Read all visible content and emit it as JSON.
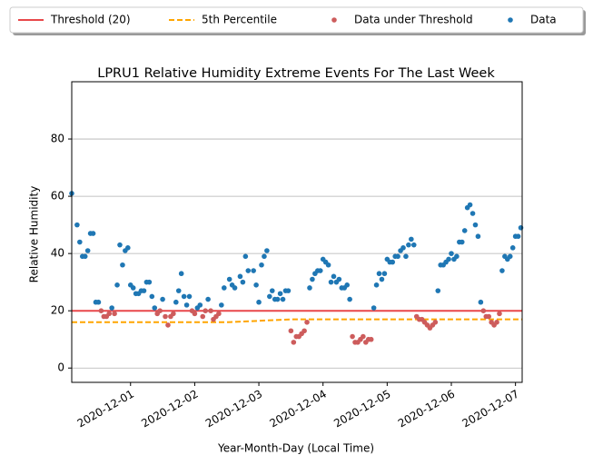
{
  "chart_data": {
    "type": "scatter",
    "title": "LPRU1 Relative Humidity Extreme Events For The Last Week",
    "x_label": "Year-Month-Day (Local Time)",
    "y_label": "Relative Humidity",
    "xlim": [
      "2020-11-30T02:00",
      "2020-12-07T02:30"
    ],
    "ylim": [
      -5,
      100
    ],
    "xticks": [
      "2020-12-01",
      "2020-12-02",
      "2020-12-03",
      "2020-12-04",
      "2020-12-05",
      "2020-12-06",
      "2020-12-07"
    ],
    "yticks": [
      0,
      20,
      40,
      60,
      80
    ],
    "grid": "y",
    "legend": "top",
    "series": [
      {
        "name": "Threshold (20)",
        "style": "line",
        "color": "#e8474a",
        "x": [
          "2020-11-30T02:00",
          "2020-12-07T02:30"
        ],
        "values": [
          20,
          20
        ]
      },
      {
        "name": "5th Percentile",
        "style": "dashed",
        "color": "#ffa500",
        "x": [
          "2020-11-30T02:00",
          "2020-12-02T12:00",
          "2020-12-03T12:00",
          "2020-12-07T02:30"
        ],
        "values": [
          16,
          16,
          17,
          17
        ]
      },
      {
        "name": "Data under Threshold",
        "style": "points",
        "color": "#cd5c5c",
        "x": [
          "2020-11-30T13:00",
          "2020-11-30T14:00",
          "2020-11-30T15:00",
          "2020-11-30T16:00",
          "2020-11-30T18:00",
          "2020-12-01T10:00",
          "2020-12-01T11:00",
          "2020-12-01T13:00",
          "2020-12-01T14:00",
          "2020-12-01T15:00",
          "2020-12-01T16:00",
          "2020-12-01T23:00",
          "2020-12-02T00:00",
          "2020-12-02T03:00",
          "2020-12-02T04:00",
          "2020-12-02T06:00",
          "2020-12-02T07:00",
          "2020-12-02T08:00",
          "2020-12-02T09:00",
          "2020-12-03T12:00",
          "2020-12-03T13:00",
          "2020-12-03T14:00",
          "2020-12-03T15:00",
          "2020-12-03T16:00",
          "2020-12-03T17:00",
          "2020-12-03T18:00",
          "2020-12-04T11:00",
          "2020-12-04T12:00",
          "2020-12-04T13:00",
          "2020-12-04T14:00",
          "2020-12-04T15:00",
          "2020-12-04T16:00",
          "2020-12-04T17:00",
          "2020-12-04T18:00",
          "2020-12-05T11:00",
          "2020-12-05T12:00",
          "2020-12-05T13:00",
          "2020-12-05T14:00",
          "2020-12-05T15:00",
          "2020-12-05T16:00",
          "2020-12-05T17:00",
          "2020-12-05T18:00",
          "2020-12-06T12:00",
          "2020-12-06T13:00",
          "2020-12-06T14:00",
          "2020-12-06T15:00",
          "2020-12-06T16:00",
          "2020-12-06T17:00",
          "2020-12-06T18:00"
        ],
        "values": [
          20,
          18,
          18,
          19,
          19,
          19,
          20,
          18,
          15,
          18,
          19,
          20,
          19,
          18,
          20,
          20,
          17,
          18,
          19,
          13,
          9,
          11,
          11,
          12,
          13,
          16,
          11,
          9,
          9,
          10,
          11,
          9,
          10,
          10,
          18,
          17,
          17,
          16,
          15,
          14,
          15,
          16,
          20,
          18,
          18,
          16,
          15,
          16,
          19
        ]
      },
      {
        "name": "Data",
        "style": "points",
        "color": "#1f77b4",
        "x": [
          "2020-11-30T02:00",
          "2020-11-30T04:00",
          "2020-11-30T05:00",
          "2020-11-30T06:00",
          "2020-11-30T07:00",
          "2020-11-30T08:00",
          "2020-11-30T09:00",
          "2020-11-30T10:00",
          "2020-11-30T11:00",
          "2020-11-30T12:00",
          "2020-11-30T17:00",
          "2020-11-30T19:00",
          "2020-11-30T20:00",
          "2020-11-30T21:00",
          "2020-11-30T22:00",
          "2020-11-30T23:00",
          "2020-12-01T00:00",
          "2020-12-01T01:00",
          "2020-12-01T02:00",
          "2020-12-01T03:00",
          "2020-12-01T04:00",
          "2020-12-01T05:00",
          "2020-12-01T06:00",
          "2020-12-01T07:00",
          "2020-12-01T08:00",
          "2020-12-01T09:00",
          "2020-12-01T12:00",
          "2020-12-01T17:00",
          "2020-12-01T18:00",
          "2020-12-01T19:00",
          "2020-12-01T20:00",
          "2020-12-01T21:00",
          "2020-12-01T22:00",
          "2020-12-02T01:00",
          "2020-12-02T02:00",
          "2020-12-02T05:00",
          "2020-12-02T10:00",
          "2020-12-02T11:00",
          "2020-12-02T13:00",
          "2020-12-02T14:00",
          "2020-12-02T15:00",
          "2020-12-02T17:00",
          "2020-12-02T18:00",
          "2020-12-02T19:00",
          "2020-12-02T20:00",
          "2020-12-02T22:00",
          "2020-12-02T23:00",
          "2020-12-03T00:00",
          "2020-12-03T01:00",
          "2020-12-03T02:00",
          "2020-12-03T03:00",
          "2020-12-03T04:00",
          "2020-12-03T05:00",
          "2020-12-03T06:00",
          "2020-12-03T07:00",
          "2020-12-03T08:00",
          "2020-12-03T09:00",
          "2020-12-03T10:00",
          "2020-12-03T11:00",
          "2020-12-03T19:00",
          "2020-12-03T20:00",
          "2020-12-03T21:00",
          "2020-12-03T22:00",
          "2020-12-03T23:00",
          "2020-12-04T00:00",
          "2020-12-04T01:00",
          "2020-12-04T02:00",
          "2020-12-04T03:00",
          "2020-12-04T04:00",
          "2020-12-04T05:00",
          "2020-12-04T06:00",
          "2020-12-04T07:00",
          "2020-12-04T08:00",
          "2020-12-04T09:00",
          "2020-12-04T10:00",
          "2020-12-04T19:00",
          "2020-12-04T20:00",
          "2020-12-04T21:00",
          "2020-12-04T22:00",
          "2020-12-04T23:00",
          "2020-12-05T00:00",
          "2020-12-05T01:00",
          "2020-12-05T02:00",
          "2020-12-05T03:00",
          "2020-12-05T04:00",
          "2020-12-05T05:00",
          "2020-12-05T06:00",
          "2020-12-05T07:00",
          "2020-12-05T08:00",
          "2020-12-05T09:00",
          "2020-12-05T10:00",
          "2020-12-05T19:00",
          "2020-12-05T20:00",
          "2020-12-05T21:00",
          "2020-12-05T22:00",
          "2020-12-05T23:00",
          "2020-12-06T00:00",
          "2020-12-06T01:00",
          "2020-12-06T02:00",
          "2020-12-06T03:00",
          "2020-12-06T04:00",
          "2020-12-06T05:00",
          "2020-12-06T06:00",
          "2020-12-06T07:00",
          "2020-12-06T08:00",
          "2020-12-06T09:00",
          "2020-12-06T10:00",
          "2020-12-06T11:00",
          "2020-12-06T19:00",
          "2020-12-06T20:00",
          "2020-12-06T21:00",
          "2020-12-06T22:00",
          "2020-12-06T23:00",
          "2020-12-07T00:00",
          "2020-12-07T01:00",
          "2020-12-07T02:00"
        ],
        "values": [
          61,
          50,
          44,
          39,
          39,
          41,
          47,
          47,
          23,
          23,
          21,
          29,
          43,
          36,
          41,
          42,
          29,
          28,
          26,
          26,
          27,
          27,
          30,
          30,
          25,
          21,
          24,
          23,
          27,
          33,
          25,
          22,
          25,
          21,
          22,
          24,
          22,
          28,
          31,
          29,
          28,
          32,
          30,
          39,
          34,
          34,
          29,
          23,
          36,
          39,
          41,
          25,
          27,
          24,
          24,
          26,
          24,
          27,
          27,
          28,
          31,
          33,
          34,
          34,
          38,
          37,
          36,
          30,
          32,
          30,
          31,
          28,
          28,
          29,
          24,
          21,
          29,
          33,
          31,
          33,
          38,
          37,
          37,
          39,
          39,
          41,
          42,
          39,
          43,
          45,
          43,
          27,
          36,
          36,
          37,
          38,
          40,
          38,
          39,
          44,
          44,
          48,
          56,
          57,
          54,
          50,
          46,
          23,
          34,
          39,
          38,
          39,
          42,
          46,
          46,
          49
        ]
      }
    ]
  }
}
